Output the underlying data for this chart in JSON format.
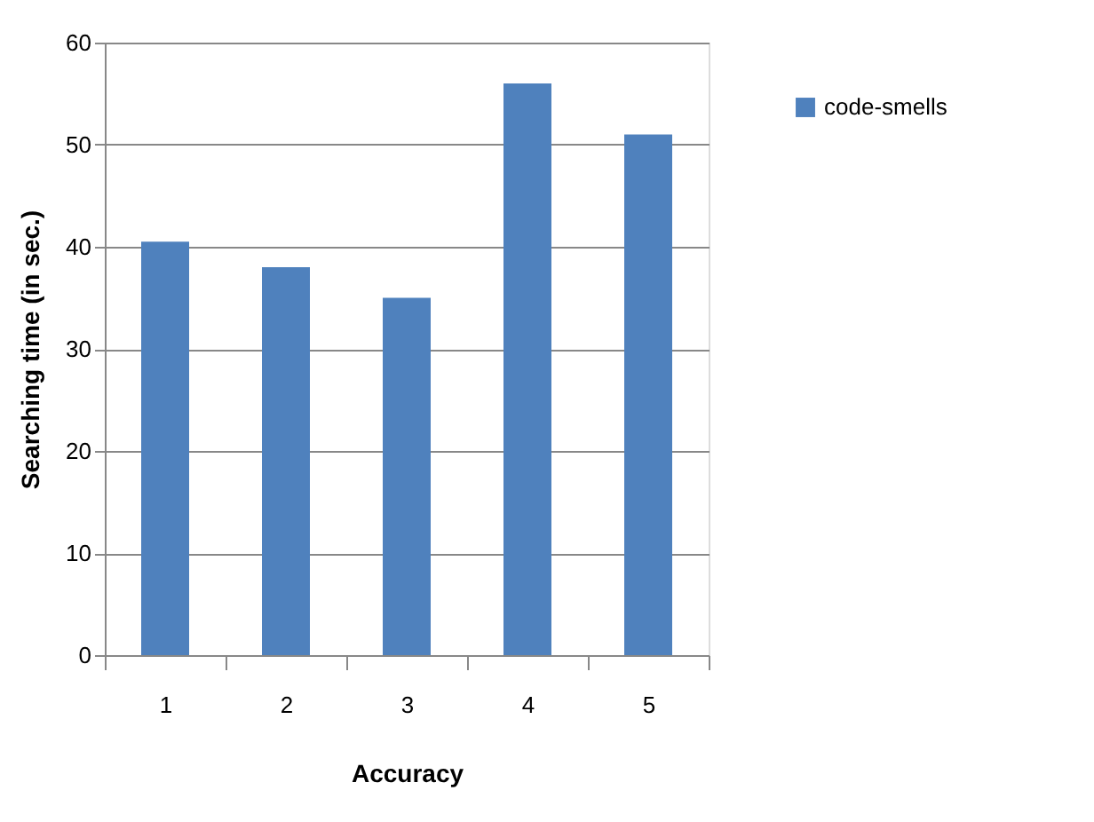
{
  "chart_data": {
    "type": "bar",
    "xlabel": "Accuracy",
    "ylabel": "Searching time (in sec.)",
    "categories": [
      "1",
      "2",
      "3",
      "4",
      "5"
    ],
    "series": [
      {
        "name": "code-smells",
        "color": "#4f81bd",
        "values": [
          40.5,
          38,
          35,
          56,
          51
        ]
      }
    ],
    "ylim": [
      0,
      60
    ],
    "yticks": [
      0,
      10,
      20,
      30,
      40,
      50,
      60
    ],
    "grid": "y",
    "legend": "right"
  }
}
